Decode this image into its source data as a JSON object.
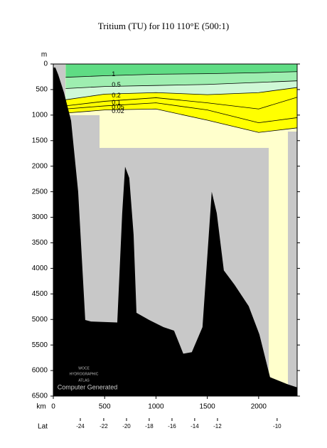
{
  "chart_data": {
    "type": "section",
    "title": "Tritium (TU) for I10 110°E (500:1)",
    "y_unit": "m",
    "x_unit": "km",
    "lat_axis_label": "Lat",
    "watermark": [
      "WOCE",
      "HYDROGRAPHIC",
      "ATLAS"
    ],
    "note": "Computer Generated",
    "xlim": [
      0,
      2375
    ],
    "ylim": [
      0,
      6500
    ],
    "xticks": [
      0,
      500,
      1000,
      1500,
      2000
    ],
    "yticks": [
      0,
      500,
      1000,
      1500,
      2000,
      2500,
      3000,
      3500,
      4000,
      4500,
      5000,
      5500,
      6000,
      6500
    ],
    "lat_ticks": [
      {
        "value": 263,
        "label": "-24"
      },
      {
        "value": 491,
        "label": "-22"
      },
      {
        "value": 713,
        "label": "-20"
      },
      {
        "value": 934,
        "label": "-18"
      },
      {
        "value": 1156,
        "label": "-16"
      },
      {
        "value": 1377,
        "label": "-14"
      },
      {
        "value": 1599,
        "label": "-12"
      },
      {
        "value": 2180,
        "label": "-10"
      }
    ],
    "band_colors": [
      "#5fdc84",
      "#9eeeb0",
      "#cff8d6",
      "#ffff00",
      "#ffff00",
      "#ffff00"
    ],
    "series": [
      {
        "name": "1",
        "x": [
          120,
          500,
          1000,
          1500,
          2000,
          2375
        ],
        "values": [
          260,
          230,
          200,
          190,
          170,
          150
        ]
      },
      {
        "name": "0.5",
        "x": [
          120,
          500,
          1000,
          1500,
          2000,
          2375
        ],
        "values": [
          480,
          440,
          420,
          400,
          360,
          330
        ]
      },
      {
        "name": "0.2",
        "x": [
          120,
          500,
          1000,
          1500,
          2000,
          2375
        ],
        "values": [
          700,
          590,
          560,
          600,
          560,
          460
        ]
      },
      {
        "name": "0.1",
        "x": [
          120,
          500,
          1000,
          1500,
          2000,
          2375
        ],
        "values": [
          820,
          730,
          660,
          760,
          880,
          650
        ]
      },
      {
        "name": "0.05",
        "x": [
          120,
          500,
          1000,
          1500,
          2000,
          2375
        ],
        "values": [
          880,
          820,
          760,
          900,
          1150,
          1050
        ]
      },
      {
        "name": "0.02",
        "x": [
          120,
          500,
          1000,
          1500,
          2000,
          2375
        ],
        "values": [
          960,
          900,
          880,
          1100,
          1340,
          1250
        ]
      }
    ],
    "bathymetry": {
      "x": [
        0,
        20,
        48,
        104,
        173,
        242,
        311,
        367,
        623,
        671,
        699,
        740,
        782,
        810,
        934,
        1073,
        1176,
        1266,
        1349,
        1453,
        1543,
        1592,
        1661,
        1765,
        1903,
        2007,
        2111,
        2284,
        2375
      ],
      "depth": [
        70,
        70,
        210,
        560,
        1110,
        2500,
        5010,
        5040,
        5060,
        2920,
        2010,
        2230,
        3340,
        4870,
        5010,
        5150,
        5220,
        5670,
        5640,
        5150,
        2500,
        2920,
        4040,
        4320,
        4740,
        5290,
        6130,
        6270,
        6330
      ]
    }
  }
}
